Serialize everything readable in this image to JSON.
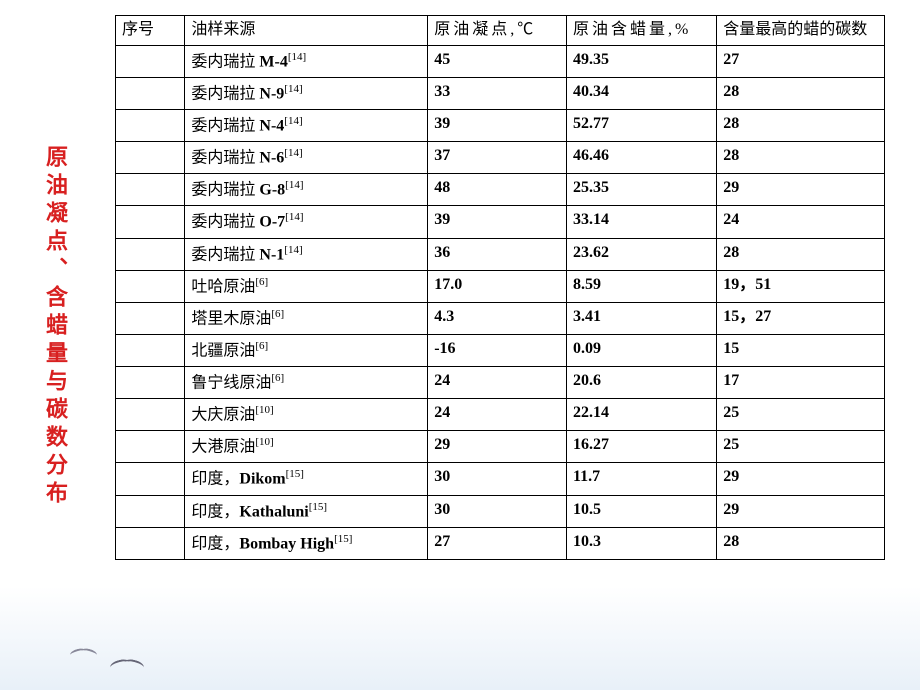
{
  "title": "原油凝点、含蜡量与碳数分布",
  "headers": {
    "seq": "序号",
    "source": "油样来源",
    "pour_point": "原油凝点,℃",
    "wax_content": "原油含蜡量,%",
    "carbon_number": "含量最高的蜡的碳数"
  },
  "rows": [
    {
      "seq": "",
      "src_prefix": "委内瑞拉 ",
      "src_bold": "M-4",
      "sup": "[14]",
      "pour": "45",
      "wax": "49.35",
      "carbon": "27"
    },
    {
      "seq": "",
      "src_prefix": "委内瑞拉 ",
      "src_bold": "N-9",
      "sup": "[14]",
      "pour": "33",
      "wax": "40.34",
      "carbon": "28"
    },
    {
      "seq": "",
      "src_prefix": "委内瑞拉 ",
      "src_bold": "N-4",
      "sup": "[14]",
      "pour": "39",
      "wax": "52.77",
      "carbon": "28"
    },
    {
      "seq": "",
      "src_prefix": "委内瑞拉 ",
      "src_bold": "N-6",
      "sup": "[14]",
      "pour": "37",
      "wax": "46.46",
      "carbon": "28"
    },
    {
      "seq": "",
      "src_prefix": "委内瑞拉 ",
      "src_bold": "G-8",
      "sup": "[14]",
      "pour": "48",
      "wax": "25.35",
      "carbon": "29"
    },
    {
      "seq": "",
      "src_prefix": "委内瑞拉 ",
      "src_bold": "O-7",
      "sup": "[14]",
      "pour": "39",
      "wax": "33.14",
      "carbon": "24"
    },
    {
      "seq": "",
      "src_prefix": "委内瑞拉 ",
      "src_bold": "N-1",
      "sup": "[14]",
      "pour": "36",
      "wax": "23.62",
      "carbon": "28"
    },
    {
      "seq": "",
      "src_prefix": "吐哈原油",
      "src_bold": "",
      "sup": "[6]",
      "pour": "17.0",
      "wax": "8.59",
      "carbon": "19，51"
    },
    {
      "seq": "",
      "src_prefix": "塔里木原油",
      "src_bold": "",
      "sup": "[6]",
      "pour": "4.3",
      "wax": "3.41",
      "carbon": "15，27"
    },
    {
      "seq": "",
      "src_prefix": "北疆原油",
      "src_bold": "",
      "sup": "[6]",
      "pour": "-16",
      "wax": "0.09",
      "carbon": "15"
    },
    {
      "seq": "",
      "src_prefix": "鲁宁线原油",
      "src_bold": "",
      "sup": "[6]",
      "pour": "24",
      "wax": "20.6",
      "carbon": "17"
    },
    {
      "seq": "",
      "src_prefix": "大庆原油",
      "src_bold": "",
      "sup": "[10]",
      "pour": "24",
      "wax": "22.14",
      "carbon": "25"
    },
    {
      "seq": "",
      "src_prefix": "大港原油",
      "src_bold": "",
      "sup": "[10]",
      "pour": "29",
      "wax": "16.27",
      "carbon": "25"
    },
    {
      "seq": "",
      "src_prefix": "印度，",
      "src_bold": "Dikom",
      "sup": "[15]",
      "pour": "30",
      "wax": "11.7",
      "carbon": "29"
    },
    {
      "seq": "",
      "src_prefix": "印度，",
      "src_bold": "Kathaluni",
      "sup": "[15]",
      "pour": "30",
      "wax": "10.5",
      "carbon": "29"
    },
    {
      "seq": "",
      "src_prefix": "印度，",
      "src_bold": "Bombay High",
      "sup": "[15]",
      "pour": "27",
      "wax": "10.3",
      "carbon": "28"
    }
  ],
  "colors": {
    "title_color": "#d82020",
    "border_color": "#000000",
    "text_color": "#000000",
    "background": "#ffffff"
  },
  "table_style": {
    "font_family": "SimSun",
    "cell_font_size": 16,
    "title_font_size": 22,
    "border_width": 1.5
  }
}
